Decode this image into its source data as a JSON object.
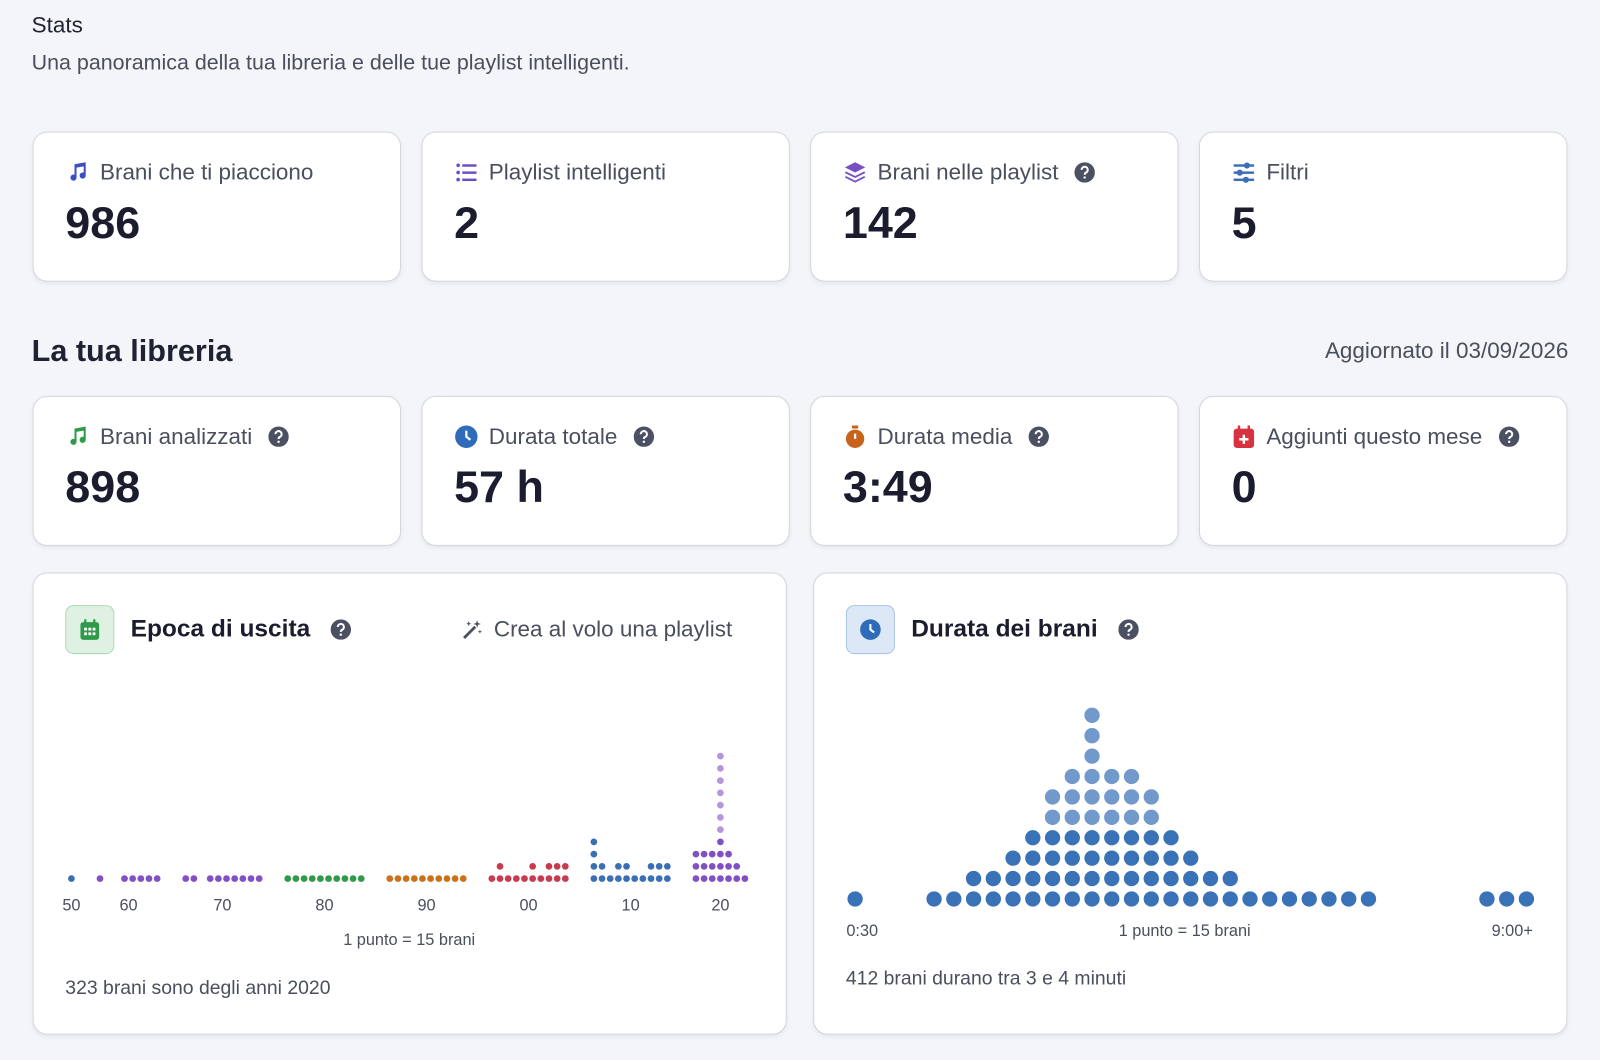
{
  "header": {
    "title": "Stats",
    "subtitle": "Una panoramica della tua libreria e delle tue playlist intelligenti."
  },
  "summary_cards": [
    {
      "label": "Brani che ti piacciono",
      "value": 986
    },
    {
      "label": "Playlist intelligenti",
      "value": 2
    },
    {
      "label": "Brani nelle playlist",
      "value": 142
    },
    {
      "label": "Filtri",
      "value": 5
    }
  ],
  "library": {
    "title": "La tua libreria",
    "updated": "Aggiornato il 03/09/2026",
    "cards": [
      {
        "label": "Brani analizzati",
        "value": 898
      },
      {
        "label": "Durata totale",
        "value": "57 h"
      },
      {
        "label": "Durata media",
        "value": "3:49"
      },
      {
        "label": "Aggiunti questo mese",
        "value": 0
      }
    ]
  },
  "epoch_chart": {
    "title": "Epoca di uscita",
    "action": "Crea al volo una playlist",
    "legend": "1 punto = 15 brani",
    "caption": "323 brani sono degli anni 2020",
    "decades": [
      {
        "label": "50",
        "color": "#3a6fb5",
        "counts": [
          1
        ]
      },
      {
        "label": "60",
        "color": "#8350c4",
        "counts": [
          1,
          0,
          0,
          1,
          1,
          1,
          1,
          1
        ]
      },
      {
        "label": "70",
        "color": "#8350c4",
        "counts": [
          1,
          1,
          0,
          1,
          1,
          1,
          1,
          1,
          1,
          1
        ]
      },
      {
        "label": "80",
        "color": "#2f9a4a",
        "counts": [
          1,
          1,
          1,
          1,
          1,
          1,
          1,
          1,
          1,
          1
        ]
      },
      {
        "label": "90",
        "color": "#c8731c",
        "counts": [
          1,
          1,
          1,
          1,
          1,
          1,
          1,
          1,
          1,
          1
        ]
      },
      {
        "label": "00",
        "color": "#c83a4f",
        "counts": [
          1,
          2,
          1,
          1,
          1,
          2,
          1,
          2,
          2,
          2
        ]
      },
      {
        "label": "10",
        "color": "#3a6fb5",
        "counts": [
          4,
          2,
          1,
          2,
          2,
          1,
          1,
          2,
          2,
          2
        ]
      },
      {
        "label": "20",
        "color": "#8350c4",
        "counts": [
          3,
          3,
          3,
          11,
          3,
          2,
          1
        ]
      }
    ]
  },
  "duration_chart": {
    "title": "Durata dei brani",
    "legend": "1 punto = 15 brani",
    "caption": "412 brani durano tra 3 e 4 minuti",
    "x_start_label": "0:30",
    "x_end_label": "9:00+",
    "color": "#3a72b8",
    "counts": [
      1,
      0,
      0,
      0,
      1,
      1,
      2,
      2,
      3,
      4,
      6,
      7,
      10,
      7,
      7,
      6,
      4,
      3,
      2,
      2,
      1,
      1,
      1,
      1,
      1,
      1,
      1,
      0,
      0,
      0,
      0,
      0,
      1,
      1,
      1
    ]
  }
}
